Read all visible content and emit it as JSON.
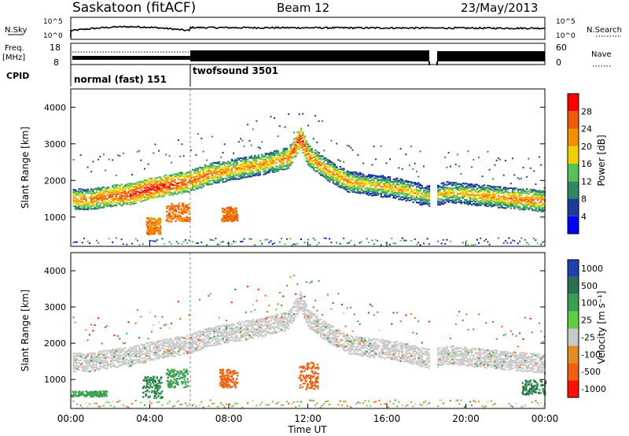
{
  "header": {
    "station": "Saskatoon (fitACF)",
    "beam": "Beam 12",
    "date": "23/May/2013"
  },
  "strip_panels": {
    "nsky_label": "N.Sky",
    "nsky_ticks": [
      "10^5",
      "10^0"
    ],
    "nsearch_label": "N.Search",
    "nsearch_ticks": [
      "10^5",
      "10^0"
    ],
    "freq_label": "Freq.",
    "freq_unit": "[MHz]",
    "freq_ticks": [
      "18",
      "8"
    ],
    "nave_label": "Nave",
    "nave_ticks": [
      "60",
      "0"
    ],
    "cpid_label": "CPID",
    "cpid_modes": [
      "normal (fast) 151",
      "twofsound 3501"
    ]
  },
  "colorbars": {
    "power": {
      "label": "Power [dB]",
      "ticks": [
        "28",
        "24",
        "20",
        "16",
        "12",
        "8",
        "4"
      ],
      "colors": [
        "#0000ff",
        "#1e3a9e",
        "#2e8a5e",
        "#54c254",
        "#f4d000",
        "#f49000",
        "#f05a00",
        "#ff0000"
      ]
    },
    "velocity": {
      "label": "Velocity [m s⁻¹]",
      "ticks": [
        "1000",
        "500",
        "100",
        "25",
        "-25",
        "-100",
        "-500",
        "-1000"
      ],
      "colors": [
        "#2040b0",
        "#2a7050",
        "#3aa050",
        "#5cd040",
        "#c8c8c8",
        "#e08c20",
        "#f06010",
        "#ff1000"
      ]
    }
  },
  "chart_data": [
    {
      "type": "heatmap",
      "panel": "power",
      "ylabel": "Slant Range [km]",
      "y_ticks": [
        "4000",
        "3000",
        "2000",
        "1000"
      ],
      "ylim": [
        200,
        4500
      ],
      "colorbar_label": "Power [dB]",
      "colorbar_range": [
        0,
        32
      ],
      "main_echo_band": {
        "x_hours": [
          0,
          1,
          2,
          3,
          4,
          5,
          6,
          7,
          8,
          9,
          10,
          11,
          11.6,
          12,
          13,
          14,
          15,
          16,
          17,
          18,
          18.4,
          19,
          20,
          21,
          22,
          23,
          24
        ],
        "range_km": [
          1500,
          1500,
          1600,
          1650,
          1800,
          1900,
          2000,
          2200,
          2300,
          2400,
          2500,
          2650,
          3200,
          2700,
          2300,
          2000,
          1900,
          1850,
          1750,
          1600,
          1600,
          1700,
          1650,
          1600,
          1550,
          1500,
          1450
        ],
        "power_dB": [
          16,
          18,
          20,
          22,
          24,
          22,
          20,
          18,
          16,
          16,
          16,
          18,
          24,
          18,
          16,
          16,
          14,
          14,
          14,
          12,
          12,
          14,
          14,
          16,
          16,
          18,
          18
        ]
      },
      "strong_patches": [
        {
          "x_hours": [
            4.8,
            6.0
          ],
          "range_km": [
            900,
            1400
          ],
          "power_dB": 28
        },
        {
          "x_hours": [
            7.6,
            8.4
          ],
          "range_km": [
            900,
            1300
          ],
          "power_dB": 28
        },
        {
          "x_hours": [
            3.8,
            4.5
          ],
          "range_km": [
            550,
            1000
          ],
          "power_dB": 26
        }
      ],
      "data_gap_hours": [
        18.1,
        18.5
      ]
    },
    {
      "type": "heatmap",
      "panel": "velocity",
      "ylabel": "Slant Range [km]",
      "y_ticks": [
        "4000",
        "3000",
        "2000",
        "1000"
      ],
      "ylim": [
        200,
        4500
      ],
      "colorbar_label": "Velocity [m s⁻¹]",
      "colorbar_range": [
        -1000,
        1000
      ],
      "background_velocity": 0,
      "velocity_patches": [
        {
          "x_hours": [
            0.0,
            1.8
          ],
          "range_km": [
            550,
            700
          ],
          "velocity": 200
        },
        {
          "x_hours": [
            3.6,
            4.6
          ],
          "range_km": [
            500,
            1100
          ],
          "velocity": 500
        },
        {
          "x_hours": [
            4.8,
            5.9
          ],
          "range_km": [
            800,
            1300
          ],
          "velocity": 300
        },
        {
          "x_hours": [
            7.5,
            8.4
          ],
          "range_km": [
            800,
            1300
          ],
          "velocity": -300
        },
        {
          "x_hours": [
            11.5,
            12.5
          ],
          "range_km": [
            750,
            1500
          ],
          "velocity": -300
        },
        {
          "x_hours": [
            22.8,
            24.0
          ],
          "range_km": [
            600,
            1000
          ],
          "velocity": 500
        }
      ],
      "data_gap_hours": [
        18.1,
        18.5
      ]
    }
  ],
  "time_axis": {
    "label": "Time UT",
    "ticks": [
      "00:00",
      "04:00",
      "08:00",
      "12:00",
      "16:00",
      "20:00",
      "00:00"
    ]
  }
}
